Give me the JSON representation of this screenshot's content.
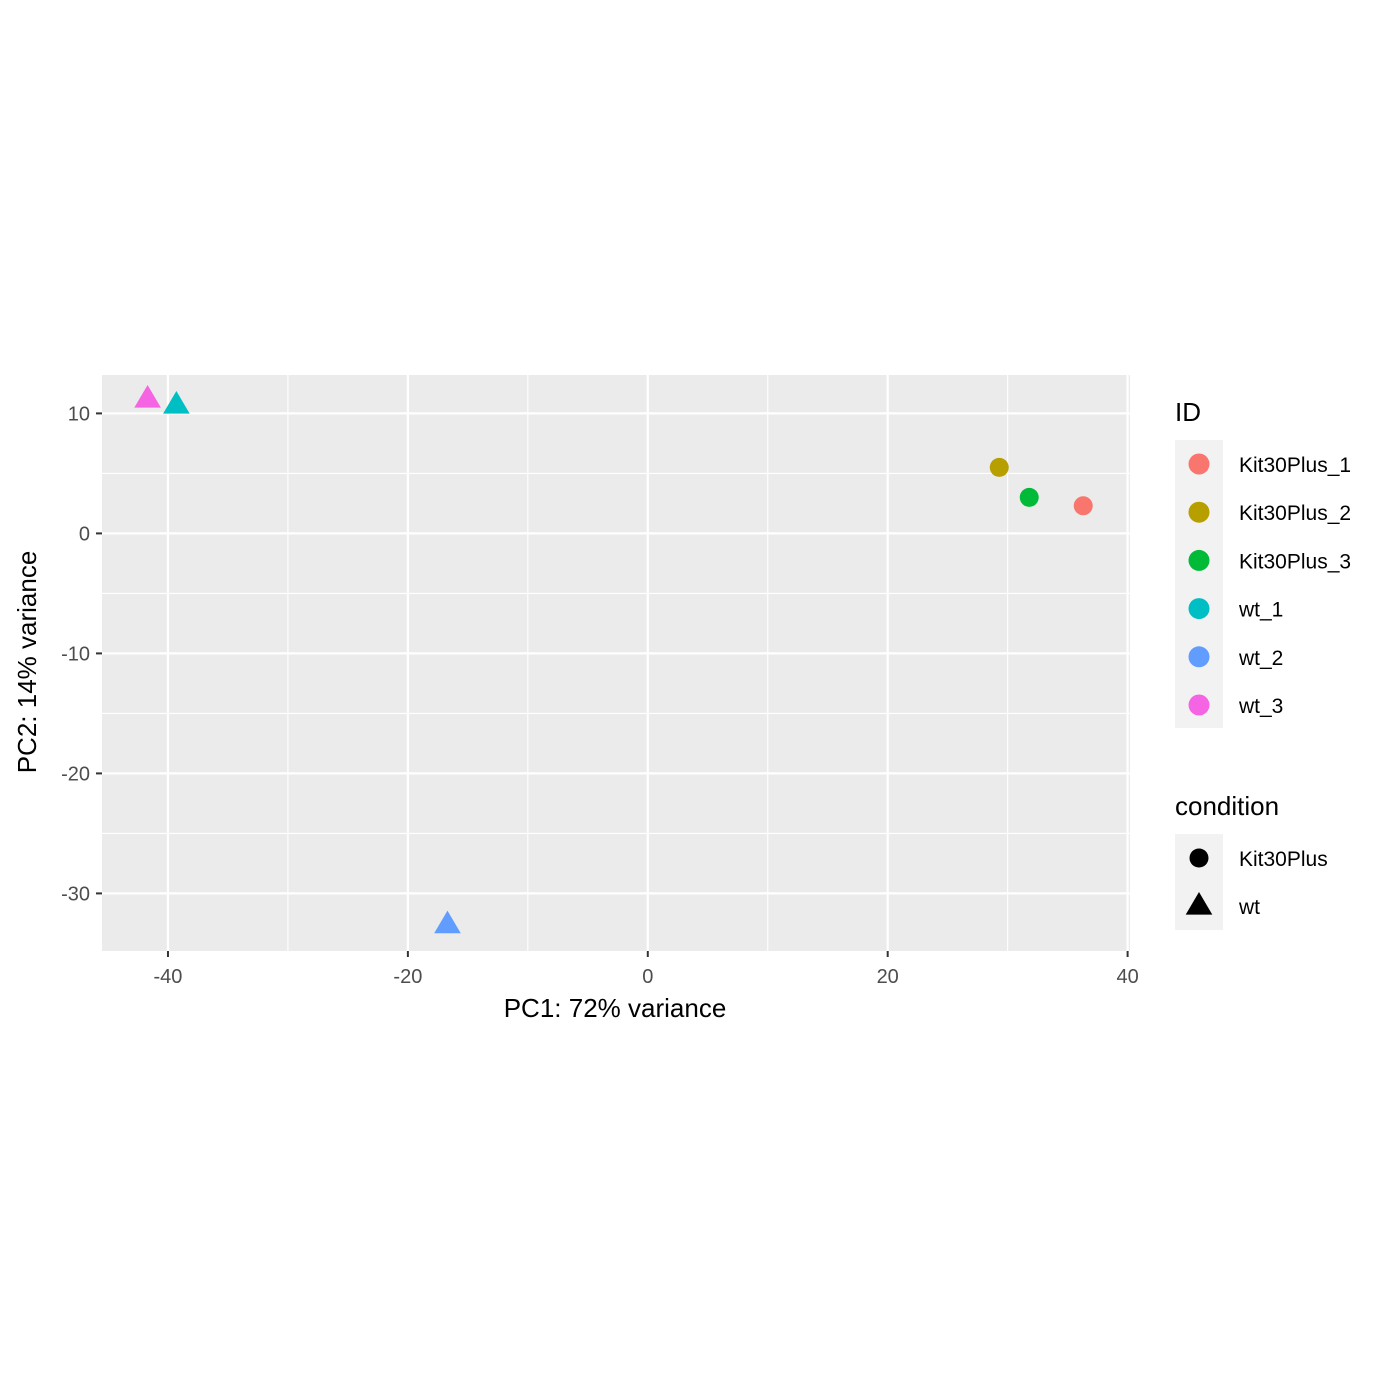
{
  "chart_data": {
    "type": "scatter",
    "xlabel": "PC1: 72% variance",
    "ylabel": "PC2: 14% variance",
    "xlim": [
      -45.5,
      40.2
    ],
    "ylim": [
      -34.8,
      13.2
    ],
    "x_ticks": [
      -40,
      -20,
      0,
      20,
      40
    ],
    "x_tick_labels": [
      "-40",
      "-20",
      "0",
      "20",
      "40"
    ],
    "y_ticks": [
      10,
      0,
      -10,
      -20,
      -30
    ],
    "y_tick_labels": [
      "10",
      "0",
      "-10",
      "-20",
      "-30"
    ],
    "grid": true,
    "background": "#ebebeb",
    "points": [
      {
        "id": "Kit30Plus_1",
        "condition": "Kit30Plus",
        "x": 36.3,
        "y": 2.3
      },
      {
        "id": "Kit30Plus_2",
        "condition": "Kit30Plus",
        "x": 29.3,
        "y": 5.5
      },
      {
        "id": "Kit30Plus_3",
        "condition": "Kit30Plus",
        "x": 31.8,
        "y": 3.0
      },
      {
        "id": "wt_1",
        "condition": "wt",
        "x": -39.3,
        "y": 10.7
      },
      {
        "id": "wt_2",
        "condition": "wt",
        "x": -16.7,
        "y": -32.6
      },
      {
        "id": "wt_3",
        "condition": "wt",
        "x": -41.7,
        "y": 11.2
      }
    ],
    "legend_placement": "right",
    "legend_id": {
      "title": "ID",
      "entries": [
        {
          "label": "Kit30Plus_1",
          "color": "#F8766D"
        },
        {
          "label": "Kit30Plus_2",
          "color": "#B79F00"
        },
        {
          "label": "Kit30Plus_3",
          "color": "#00BA38"
        },
        {
          "label": "wt_1",
          "color": "#00BFC4"
        },
        {
          "label": "wt_2",
          "color": "#619CFF"
        },
        {
          "label": "wt_3",
          "color": "#F564E3"
        }
      ]
    },
    "legend_condition": {
      "title": "condition",
      "entries": [
        {
          "label": "Kit30Plus",
          "shape": "circle"
        },
        {
          "label": "wt",
          "shape": "triangle"
        }
      ]
    }
  }
}
